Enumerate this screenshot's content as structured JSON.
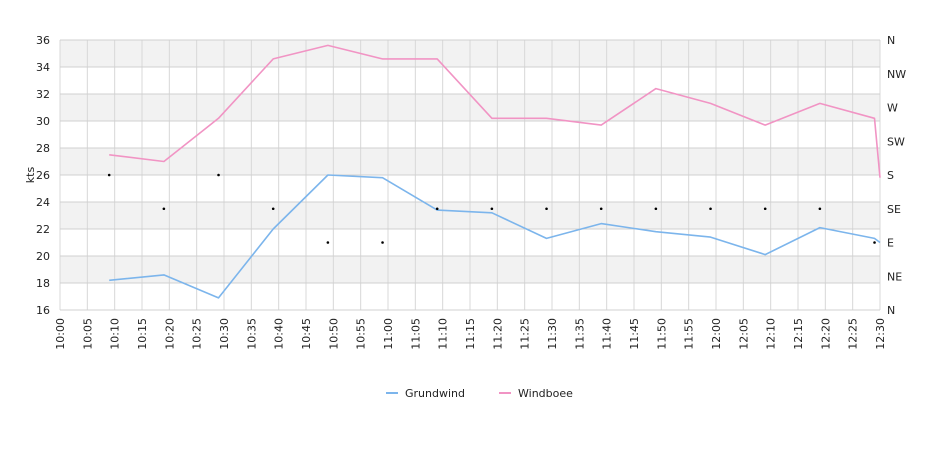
{
  "chart_data": {
    "type": "line",
    "ylabel": "kts",
    "ylim": [
      16,
      36
    ],
    "yticks": [
      16,
      18,
      20,
      22,
      24,
      26,
      28,
      30,
      32,
      34,
      36
    ],
    "x_range": [
      "10:00",
      "12:30"
    ],
    "xticks": [
      "10:00",
      "10:05",
      "10:10",
      "10:15",
      "10:20",
      "10:25",
      "10:30",
      "10:35",
      "10:40",
      "10:45",
      "10:50",
      "10:55",
      "11:00",
      "11:05",
      "11:10",
      "11:15",
      "11:20",
      "11:25",
      "11:30",
      "11:35",
      "11:40",
      "11:45",
      "11:50",
      "11:55",
      "12:00",
      "12:05",
      "12:10",
      "12:15",
      "12:20",
      "12:25",
      "12:30"
    ],
    "y2_labels": [
      "N",
      "NE",
      "E",
      "SE",
      "S",
      "SW",
      "W",
      "NW",
      "N"
    ],
    "grid": true,
    "legend_position": "bottom",
    "series": [
      {
        "name": "Grundwind",
        "color": "#7cb5ec",
        "x": [
          "10:09",
          "10:19",
          "10:29",
          "10:39",
          "10:49",
          "10:59",
          "11:09",
          "11:19",
          "11:29",
          "11:39",
          "11:49",
          "11:59",
          "12:09",
          "12:19",
          "12:29",
          "12:30"
        ],
        "values": [
          18.2,
          18.6,
          16.9,
          22.0,
          26.0,
          25.8,
          23.4,
          23.2,
          21.3,
          22.4,
          21.8,
          21.4,
          20.1,
          22.1,
          21.3,
          21.0
        ]
      },
      {
        "name": "Windboee",
        "color": "#f194c4",
        "x": [
          "10:09",
          "10:19",
          "10:29",
          "10:39",
          "10:49",
          "10:59",
          "11:09",
          "11:19",
          "11:29",
          "11:39",
          "11:49",
          "11:59",
          "12:09",
          "12:19",
          "12:29",
          "12:30"
        ],
        "values": [
          27.5,
          27.0,
          30.2,
          34.6,
          35.6,
          34.6,
          34.6,
          30.2,
          30.2,
          29.7,
          32.4,
          31.3,
          29.7,
          31.3,
          30.2,
          25.8
        ]
      }
    ],
    "direction_markers": {
      "x": [
        "10:09",
        "10:19",
        "10:29",
        "10:39",
        "10:49",
        "10:59",
        "11:09",
        "11:19",
        "11:29",
        "11:39",
        "11:49",
        "11:59",
        "12:09",
        "12:19",
        "12:29"
      ],
      "values": [
        "S",
        "SE",
        "S",
        "SE",
        "E",
        "E",
        "SE",
        "SE",
        "SE",
        "SE",
        "SE",
        "SE",
        "SE",
        "SE",
        "E"
      ]
    }
  }
}
